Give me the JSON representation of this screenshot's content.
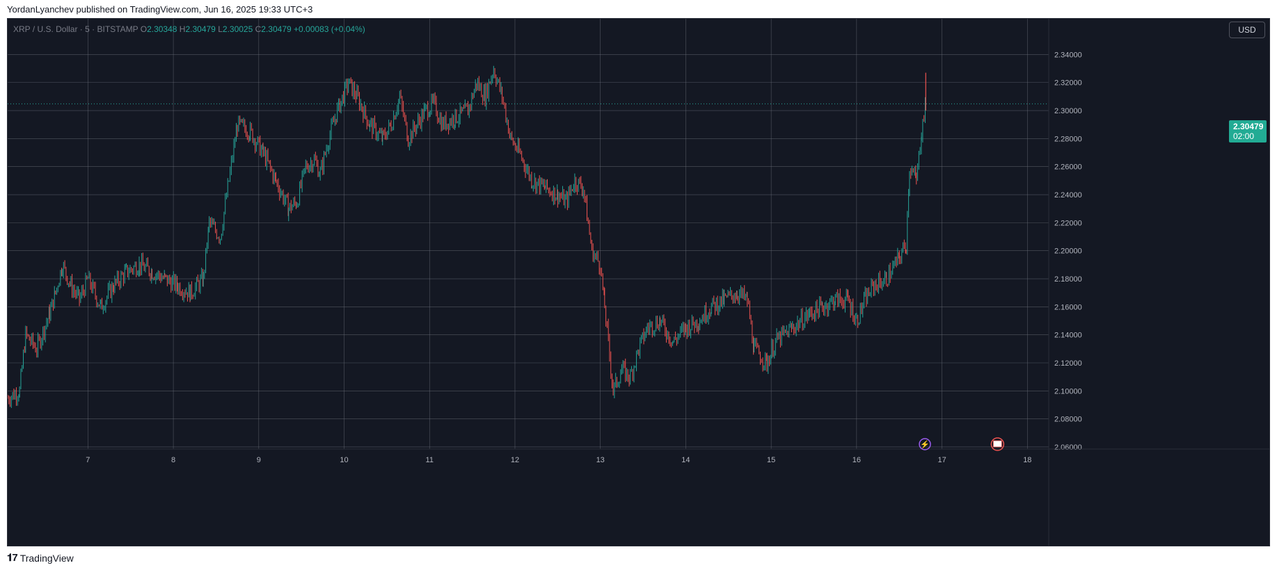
{
  "publisher_line": "YordanLyanchev published on TradingView.com, Jun 16, 2025 19:33 UTC+3",
  "legend": {
    "symbol": "XRP / U.S. Dollar · 5 · BITSTAMP",
    "o_label": "O",
    "o_value": "2.30348",
    "h_label": "H",
    "h_value": "2.30479",
    "l_label": "L",
    "l_value": "2.30025",
    "c_label": "C",
    "c_value": "2.30479",
    "change": "+0.00083 (+0.04%)"
  },
  "currency_button": "USD",
  "last_price": {
    "price": "2.30479",
    "countdown": "02:00"
  },
  "footer_brand": "TradingView",
  "colors": {
    "up": "#26a69a",
    "down": "#ef5350",
    "background": "#141823",
    "grid": "#6b6f7a",
    "tag": "#22ab94"
  },
  "chart_data": {
    "type": "line",
    "title": "XRP / U.S. Dollar · 5 · BITSTAMP",
    "xlabel": "",
    "ylabel": "",
    "x_ticks": [
      "7",
      "8",
      "9",
      "10",
      "11",
      "12",
      "13",
      "14",
      "15",
      "16",
      "17",
      "18"
    ],
    "x_tick_values": [
      7,
      8,
      9,
      10,
      11,
      12,
      13,
      14,
      15,
      16,
      17,
      18
    ],
    "y_ticks": [
      "2.34000",
      "2.32000",
      "2.30000",
      "2.28000",
      "2.26000",
      "2.24000",
      "2.22000",
      "2.20000",
      "2.18000",
      "2.16000",
      "2.14000",
      "2.12000",
      "2.10000",
      "2.08000",
      "2.06000"
    ],
    "xlim": [
      6.06,
      18.25
    ],
    "ylim": [
      2.0585,
      2.3655
    ],
    "current_price": 2.30479,
    "series": [
      {
        "values": [
          [
            6.06,
            2.095
          ],
          [
            6.2,
            2.1
          ],
          [
            6.27,
            2.14
          ],
          [
            6.4,
            2.13
          ],
          [
            6.55,
            2.155
          ],
          [
            6.62,
            2.17
          ],
          [
            6.7,
            2.19
          ],
          [
            6.8,
            2.175
          ],
          [
            6.9,
            2.165
          ],
          [
            7.0,
            2.18
          ],
          [
            7.15,
            2.16
          ],
          [
            7.3,
            2.175
          ],
          [
            7.45,
            2.185
          ],
          [
            7.6,
            2.19
          ],
          [
            7.75,
            2.185
          ],
          [
            7.9,
            2.18
          ],
          [
            8.05,
            2.175
          ],
          [
            8.2,
            2.17
          ],
          [
            8.35,
            2.18
          ],
          [
            8.42,
            2.22
          ],
          [
            8.55,
            2.21
          ],
          [
            8.65,
            2.25
          ],
          [
            8.75,
            2.29
          ],
          [
            8.9,
            2.285
          ],
          [
            9.05,
            2.27
          ],
          [
            9.2,
            2.25
          ],
          [
            9.35,
            2.23
          ],
          [
            9.45,
            2.235
          ],
          [
            9.55,
            2.26
          ],
          [
            9.65,
            2.265
          ],
          [
            9.72,
            2.255
          ],
          [
            9.82,
            2.28
          ],
          [
            9.92,
            2.3
          ],
          [
            10.05,
            2.32
          ],
          [
            10.15,
            2.31
          ],
          [
            10.3,
            2.29
          ],
          [
            10.45,
            2.28
          ],
          [
            10.55,
            2.29
          ],
          [
            10.65,
            2.31
          ],
          [
            10.75,
            2.28
          ],
          [
            10.85,
            2.29
          ],
          [
            10.95,
            2.3
          ],
          [
            11.05,
            2.305
          ],
          [
            11.15,
            2.29
          ],
          [
            11.3,
            2.295
          ],
          [
            11.45,
            2.3
          ],
          [
            11.55,
            2.32
          ],
          [
            11.65,
            2.31
          ],
          [
            11.75,
            2.33
          ],
          [
            11.85,
            2.31
          ],
          [
            11.95,
            2.28
          ],
          [
            12.05,
            2.27
          ],
          [
            12.2,
            2.25
          ],
          [
            12.35,
            2.245
          ],
          [
            12.5,
            2.24
          ],
          [
            12.6,
            2.235
          ],
          [
            12.7,
            2.25
          ],
          [
            12.8,
            2.245
          ],
          [
            12.9,
            2.2
          ],
          [
            13.0,
            2.19
          ],
          [
            13.05,
            2.16
          ],
          [
            13.15,
            2.1
          ],
          [
            13.25,
            2.115
          ],
          [
            13.35,
            2.11
          ],
          [
            13.45,
            2.13
          ],
          [
            13.55,
            2.145
          ],
          [
            13.7,
            2.15
          ],
          [
            13.85,
            2.135
          ],
          [
            14.0,
            2.145
          ],
          [
            14.15,
            2.15
          ],
          [
            14.3,
            2.16
          ],
          [
            14.45,
            2.165
          ],
          [
            14.6,
            2.17
          ],
          [
            14.72,
            2.165
          ],
          [
            14.8,
            2.13
          ],
          [
            14.95,
            2.12
          ],
          [
            15.05,
            2.135
          ],
          [
            15.25,
            2.145
          ],
          [
            15.45,
            2.155
          ],
          [
            15.6,
            2.16
          ],
          [
            15.75,
            2.165
          ],
          [
            15.9,
            2.165
          ],
          [
            16.0,
            2.15
          ],
          [
            16.1,
            2.165
          ],
          [
            16.2,
            2.175
          ],
          [
            16.35,
            2.18
          ],
          [
            16.5,
            2.195
          ],
          [
            16.58,
            2.205
          ],
          [
            16.62,
            2.26
          ],
          [
            16.7,
            2.25
          ],
          [
            16.76,
            2.285
          ],
          [
            16.81,
            2.305
          ]
        ]
      }
    ]
  }
}
